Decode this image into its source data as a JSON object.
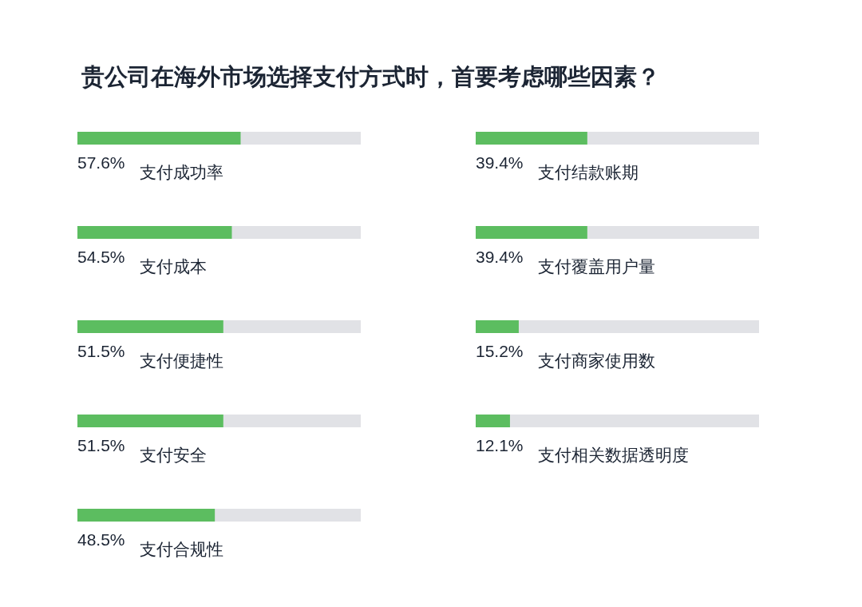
{
  "chart_data": [
    {
      "type": "bar",
      "orientation": "horizontal",
      "title": "贵公司在海外市场选择支付方式时，首要考虑哪些因素？",
      "categories": [
        "支付成功率",
        "支付成本",
        "支付便捷性",
        "支付安全",
        "支付合规性"
      ],
      "values": [
        57.6,
        54.5,
        51.5,
        51.5,
        48.5
      ],
      "value_labels": [
        "57.6%",
        "54.5%",
        "51.5%",
        "51.5%",
        "48.5%"
      ],
      "color": "#5cbd60",
      "xlim": [
        0,
        100
      ]
    },
    {
      "type": "bar",
      "orientation": "horizontal",
      "categories": [
        "支付结款账期",
        "支付覆盖用户量",
        "支付商家使用数",
        "支付相关数据透明度"
      ],
      "values": [
        39.4,
        39.4,
        15.2,
        12.1
      ],
      "value_labels": [
        "39.4%",
        "39.4%",
        "15.2%",
        "12.1%"
      ],
      "color": "#5cbd60",
      "xlim": [
        0,
        100
      ]
    }
  ]
}
